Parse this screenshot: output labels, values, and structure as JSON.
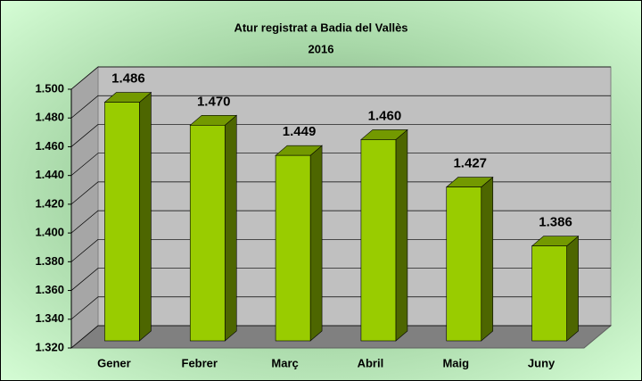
{
  "chart_data": {
    "type": "bar3d",
    "title": "Atur registrat a Badia del Vallès",
    "subtitle": "2016",
    "categories": [
      "Gener",
      "Febrer",
      "Març",
      "Abril",
      "Maig",
      "Juny"
    ],
    "values": [
      1486,
      1470,
      1449,
      1460,
      1427,
      1386
    ],
    "value_labels": [
      "1.486",
      "1.470",
      "1.449",
      "1.460",
      "1.427",
      "1.386"
    ],
    "color": "#99cc00",
    "ylim": [
      1320,
      1500
    ],
    "yticks": [
      {
        "value": 1320,
        "label": "1.320"
      },
      {
        "value": 1340,
        "label": "1.340"
      },
      {
        "value": 1360,
        "label": "1.360"
      },
      {
        "value": 1380,
        "label": "1.380"
      },
      {
        "value": 1400,
        "label": "1.400"
      },
      {
        "value": 1420,
        "label": "1.420"
      },
      {
        "value": 1440,
        "label": "1.440"
      },
      {
        "value": 1460,
        "label": "1.460"
      },
      {
        "value": 1480,
        "label": "1.480"
      },
      {
        "value": 1500,
        "label": "1.500"
      }
    ],
    "grid": true
  }
}
